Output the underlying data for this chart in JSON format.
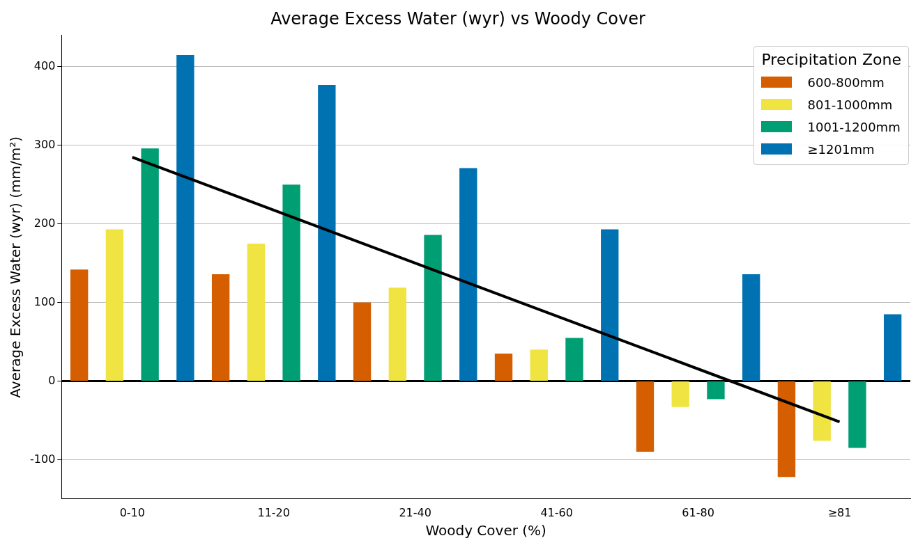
{
  "chart_data": {
    "type": "bar",
    "title": "Average Excess Water (wyr) vs Woody Cover",
    "xlabel": "Woody Cover (%)",
    "ylabel": "Average Excess Water (wyr) (mm/m²)",
    "legend_title": "Precipitation Zone",
    "categories": [
      "0-10",
      "11-20",
      "21-40",
      "41-60",
      "61-80",
      "≥81"
    ],
    "series": [
      {
        "name": "600-800mm",
        "color": "#d55e00",
        "values": [
          142,
          136,
          100,
          35,
          -90,
          -122
        ]
      },
      {
        "name": "801-1000mm",
        "color": "#f0e442",
        "values": [
          193,
          175,
          119,
          40,
          -33,
          -76
        ]
      },
      {
        "name": "1001-1200mm",
        "color": "#009e73",
        "values": [
          296,
          250,
          186,
          55,
          -23,
          -85
        ]
      },
      {
        "name": "≥1201mm",
        "color": "#0072b2",
        "values": [
          415,
          377,
          271,
          193,
          136,
          85
        ]
      },
      {
        "type": "line",
        "color": "#000000",
        "x": [
          "0-10",
          "≥81"
        ],
        "values": [
          285,
          -52
        ]
      }
    ],
    "ylim": [
      -150,
      440
    ],
    "yticks": [
      -100,
      0,
      100,
      200,
      300,
      400
    ],
    "grid": "y",
    "legend": "top right",
    "ref_lines": [
      {
        "axis": "y",
        "value": 0,
        "color": "#000000"
      }
    ]
  }
}
